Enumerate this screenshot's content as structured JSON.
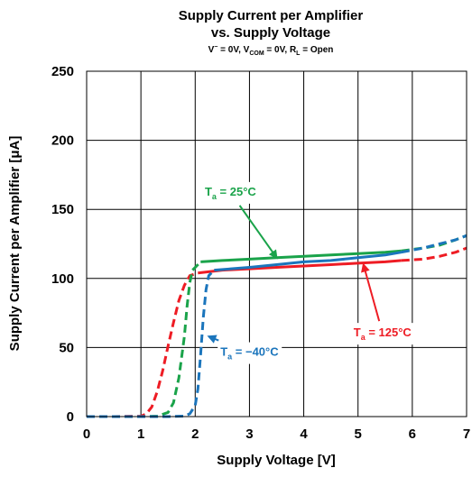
{
  "chart_data": {
    "type": "line",
    "title": "Supply Current per Amplifier",
    "subtitle": "vs. Supply Voltage",
    "conditions": {
      "v_minus": "V",
      "v_minus_sup": "−",
      "v_minus_rest": " = 0V, ",
      "vcom": "V",
      "vcom_sub": "COM",
      "vcom_rest": " = 0V, ",
      "rl": "R",
      "rl_sub": "L",
      "rl_rest": " = Open"
    },
    "xlabel": "Supply Voltage [V]",
    "ylabel": "Supply Current per Amplifier [μA]",
    "xlim": [
      0,
      7
    ],
    "ylim": [
      0,
      250
    ],
    "x_ticks": [
      "0",
      "1",
      "2",
      "3",
      "4",
      "5",
      "6",
      "7"
    ],
    "y_ticks": [
      "0",
      "50",
      "100",
      "150",
      "200",
      "250"
    ],
    "grid": true,
    "series": [
      {
        "name_main": "T",
        "name_sub": "a",
        "name_rest": " = 125°C",
        "color": "#ee1c24",
        "solid": [
          [
            2.05,
            104
          ],
          [
            2.5,
            106
          ],
          [
            3,
            107
          ],
          [
            3.5,
            108
          ],
          [
            4,
            109
          ],
          [
            4.5,
            110
          ],
          [
            5,
            111
          ],
          [
            5.5,
            112
          ],
          [
            5.8,
            113
          ]
        ],
        "dashed_low": [
          [
            0,
            0
          ],
          [
            0.5,
            0
          ],
          [
            1,
            0.3
          ],
          [
            1.1,
            2
          ],
          [
            1.2,
            7
          ],
          [
            1.3,
            18
          ],
          [
            1.4,
            33
          ],
          [
            1.5,
            51
          ],
          [
            1.6,
            68
          ],
          [
            1.7,
            84
          ],
          [
            1.8,
            95
          ],
          [
            1.9,
            102
          ],
          [
            2.05,
            104
          ]
        ],
        "dashed_high": [
          [
            5.8,
            113
          ],
          [
            6.2,
            114
          ],
          [
            6.5,
            116
          ],
          [
            6.8,
            119
          ],
          [
            7,
            122
          ]
        ]
      },
      {
        "name_main": "T",
        "name_sub": "a",
        "name_rest": " = 25°C",
        "color": "#1aa34a",
        "solid": [
          [
            2.1,
            112
          ],
          [
            2.5,
            113
          ],
          [
            3,
            114
          ],
          [
            3.5,
            115
          ],
          [
            4,
            116
          ],
          [
            4.5,
            117
          ],
          [
            5,
            118
          ],
          [
            5.5,
            119
          ],
          [
            5.8,
            120
          ]
        ],
        "dashed_low": [
          [
            0,
            0
          ],
          [
            1,
            0
          ],
          [
            1.3,
            0.3
          ],
          [
            1.5,
            3
          ],
          [
            1.6,
            10
          ],
          [
            1.7,
            28
          ],
          [
            1.8,
            58
          ],
          [
            1.85,
            80
          ],
          [
            1.9,
            97
          ],
          [
            1.95,
            106
          ],
          [
            2.1,
            112
          ]
        ],
        "dashed_high": [
          [
            5.8,
            120
          ],
          [
            6.2,
            122
          ],
          [
            6.5,
            124
          ],
          [
            6.8,
            128
          ],
          [
            7,
            131
          ]
        ]
      },
      {
        "name_main": "T",
        "name_sub": "a",
        "name_rest": " = −40°C",
        "color": "#1b75bc",
        "solid": [
          [
            2.35,
            106
          ],
          [
            3,
            108
          ],
          [
            3.5,
            110
          ],
          [
            4,
            112
          ],
          [
            4.5,
            113
          ],
          [
            5,
            115
          ],
          [
            5.5,
            117
          ],
          [
            5.8,
            119
          ]
        ],
        "dashed_low": [
          [
            0,
            0
          ],
          [
            1,
            0
          ],
          [
            1.5,
            0
          ],
          [
            1.8,
            0.3
          ],
          [
            1.9,
            2
          ],
          [
            2.0,
            8
          ],
          [
            2.05,
            20
          ],
          [
            2.1,
            45
          ],
          [
            2.15,
            72
          ],
          [
            2.2,
            92
          ],
          [
            2.25,
            102
          ],
          [
            2.35,
            106
          ]
        ],
        "dashed_high": [
          [
            5.8,
            119
          ],
          [
            6.2,
            122
          ],
          [
            6.5,
            125
          ],
          [
            6.8,
            128
          ],
          [
            7,
            131
          ]
        ]
      }
    ],
    "annotations": [
      {
        "series": 1,
        "text_pos": [
          2.65,
          160
        ],
        "arrow_to": [
          3.5,
          115
        ]
      },
      {
        "series": 0,
        "text_pos": [
          5.45,
          58
        ],
        "arrow_to": [
          5.1,
          110
        ]
      },
      {
        "series": 2,
        "text_pos": [
          3.0,
          44
        ],
        "arrow_to": [
          2.25,
          58
        ]
      }
    ]
  }
}
